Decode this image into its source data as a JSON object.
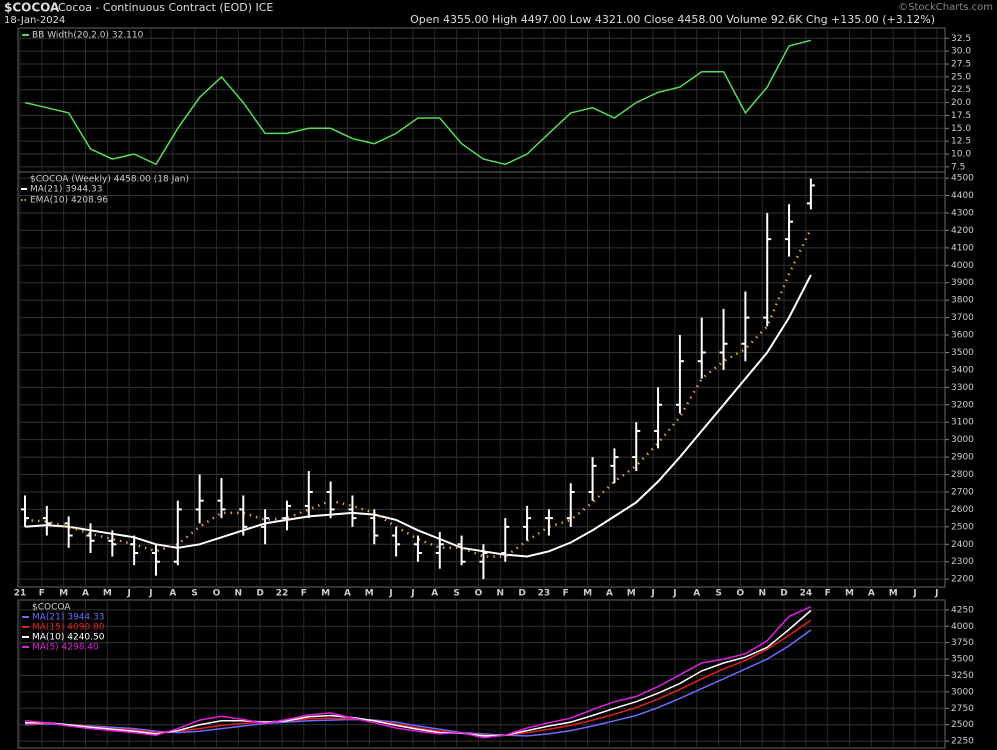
{
  "header": {
    "symbol": "$COCOA",
    "name": "Cocoa - Continuous Contract (EOD) ICE",
    "date": "18-Jan-2024",
    "quote": "Open 4355.00 High 4497.00 Low 4321.00 Close 4458.00 Volume 92.6K Chg +135.00 (+3.12%)",
    "credit": "©StockCharts.com"
  },
  "chart_data": [
    {
      "type": "line",
      "ylim": [
        6.5,
        34.5
      ],
      "yticks": [
        7.5,
        {
          "value": 10,
          "label": "10.0"
        },
        12.5,
        {
          "value": 15,
          "label": "15.0"
        },
        17.5,
        {
          "value": 20,
          "label": "20.0"
        },
        22.5,
        {
          "value": 25,
          "label": "25.0"
        },
        27.5,
        {
          "value": 30,
          "label": "30.0"
        },
        32.5
      ],
      "grid": true,
      "series": [
        {
          "name": "BB Width(20,2.0) 32.110",
          "color": "#55dd55",
          "values": [
            20,
            19,
            18,
            11,
            9,
            10,
            8,
            15,
            21,
            25,
            20,
            14,
            14,
            15,
            15,
            13,
            12,
            14,
            17,
            17,
            12,
            9,
            8,
            10,
            14,
            18,
            19,
            17,
            20,
            22,
            23,
            26,
            26,
            18,
            23,
            31,
            32.11,
            null,
            null,
            null,
            null,
            null,
            null
          ]
        }
      ]
    },
    {
      "type": "ohlc",
      "title": "$COCOA (Weekly) 4458.00 (18 Jan)",
      "ylim": [
        2155,
        4535
      ],
      "yticks": [
        2200,
        2300,
        2400,
        2500,
        2600,
        2700,
        2800,
        2900,
        3000,
        3100,
        3200,
        3300,
        3400,
        3500,
        3600,
        3700,
        3800,
        3900,
        4000,
        4100,
        4200,
        4300,
        4400,
        4500
      ],
      "grid": true,
      "categories": [
        "21",
        "F",
        "M",
        "A",
        "M",
        "J",
        "J",
        "A",
        "S",
        "O",
        "N",
        "D",
        "22",
        "F",
        "M",
        "A",
        "M",
        "J",
        "J",
        "A",
        "S",
        "O",
        "N",
        "D",
        "23",
        "F",
        "M",
        "A",
        "M",
        "J",
        "J",
        "A",
        "S",
        "O",
        "N",
        "D",
        "24",
        "F",
        "M",
        "A",
        "M",
        "J",
        "J"
      ],
      "color": "#ffffff",
      "open": [
        2600,
        2550,
        2520,
        2450,
        2420,
        2400,
        2350,
        2300,
        2600,
        2650,
        2600,
        2500,
        2550,
        2620,
        2700,
        2600,
        2550,
        2450,
        2400,
        2350,
        2400,
        2300,
        2350,
        2500,
        2550,
        2550,
        2700,
        2850,
        2900,
        3050,
        3200,
        3450,
        3500,
        3550,
        3700,
        4150,
        4355,
        null,
        null,
        null,
        null,
        null,
        null
      ],
      "high": [
        2680,
        2620,
        2560,
        2520,
        2480,
        2450,
        2400,
        2650,
        2800,
        2780,
        2680,
        2600,
        2650,
        2820,
        2760,
        2680,
        2600,
        2500,
        2450,
        2470,
        2450,
        2400,
        2550,
        2620,
        2600,
        2750,
        2900,
        2950,
        3100,
        3300,
        3600,
        3700,
        3750,
        3850,
        4300,
        4350,
        4497,
        null,
        null,
        null,
        null,
        null,
        null
      ],
      "low": [
        2500,
        2450,
        2380,
        2350,
        2330,
        2280,
        2220,
        2280,
        2520,
        2550,
        2450,
        2400,
        2480,
        2550,
        2550,
        2500,
        2400,
        2330,
        2300,
        2260,
        2280,
        2200,
        2300,
        2420,
        2450,
        2500,
        2650,
        2750,
        2820,
        2950,
        3150,
        3350,
        3400,
        3450,
        3650,
        4050,
        4321,
        null,
        null,
        null,
        null,
        null,
        null
      ],
      "close": [
        2550,
        2520,
        2450,
        2420,
        2400,
        2350,
        2300,
        2600,
        2650,
        2600,
        2500,
        2550,
        2620,
        2700,
        2600,
        2550,
        2450,
        2400,
        2350,
        2400,
        2300,
        2350,
        2500,
        2550,
        2550,
        2700,
        2850,
        2900,
        3050,
        3200,
        3450,
        3500,
        3550,
        3700,
        4150,
        4250,
        4458,
        null,
        null,
        null,
        null,
        null,
        null
      ],
      "series": [
        {
          "name": "MA(21) 3944.33",
          "color": "#ffffff",
          "style": "solid",
          "values": [
            2500,
            2510,
            2500,
            2480,
            2460,
            2440,
            2400,
            2380,
            2400,
            2440,
            2480,
            2520,
            2540,
            2560,
            2570,
            2580,
            2570,
            2540,
            2480,
            2430,
            2380,
            2360,
            2340,
            2330,
            2360,
            2410,
            2480,
            2560,
            2640,
            2760,
            2900,
            3050,
            3200,
            3350,
            3500,
            3700,
            3944.33,
            null,
            null,
            null,
            null,
            null,
            null
          ]
        },
        {
          "name": "EMA(10) 4208.96",
          "color": "#d9a050",
          "style": "dotted",
          "values": [
            2540,
            2530,
            2500,
            2460,
            2430,
            2400,
            2360,
            2400,
            2500,
            2580,
            2580,
            2540,
            2550,
            2600,
            2650,
            2620,
            2580,
            2500,
            2430,
            2380,
            2380,
            2330,
            2330,
            2420,
            2500,
            2540,
            2640,
            2760,
            2850,
            2980,
            3130,
            3350,
            3450,
            3520,
            3650,
            3950,
            4208.96,
            null,
            null,
            null,
            null,
            null,
            null
          ]
        }
      ]
    },
    {
      "type": "line",
      "title": "$COCOA",
      "ylim": [
        2145,
        4400
      ],
      "yticks": [
        2250,
        2500,
        2750,
        3000,
        3250,
        3500,
        3750,
        4000,
        4250
      ],
      "grid": true,
      "series": [
        {
          "name": "MA(21) 3944.33",
          "color": "#6b6bff",
          "values": [
            2500,
            2510,
            2500,
            2480,
            2460,
            2440,
            2400,
            2380,
            2400,
            2440,
            2480,
            2520,
            2540,
            2560,
            2570,
            2580,
            2570,
            2540,
            2480,
            2430,
            2380,
            2360,
            2340,
            2330,
            2360,
            2410,
            2480,
            2560,
            2640,
            2760,
            2900,
            3050,
            3200,
            3350,
            3500,
            3700,
            3944.33,
            null,
            null,
            null,
            null,
            null,
            null
          ]
        },
        {
          "name": "MA(15) 4090.80",
          "color": "#e02020",
          "values": [
            2510,
            2520,
            2500,
            2470,
            2440,
            2420,
            2380,
            2400,
            2440,
            2490,
            2520,
            2540,
            2560,
            2590,
            2600,
            2590,
            2560,
            2510,
            2450,
            2400,
            2370,
            2340,
            2340,
            2380,
            2430,
            2490,
            2570,
            2660,
            2760,
            2890,
            3040,
            3200,
            3350,
            3480,
            3650,
            3860,
            4090.8,
            null,
            null,
            null,
            null,
            null,
            null
          ]
        },
        {
          "name": "MA(10) 4240.50",
          "color": "#ffffff",
          "values": [
            2530,
            2530,
            2500,
            2460,
            2430,
            2400,
            2360,
            2410,
            2500,
            2560,
            2560,
            2540,
            2560,
            2620,
            2640,
            2610,
            2560,
            2490,
            2430,
            2380,
            2370,
            2330,
            2340,
            2410,
            2480,
            2540,
            2640,
            2750,
            2850,
            2980,
            3130,
            3320,
            3440,
            3530,
            3680,
            3950,
            4240.5,
            null,
            null,
            null,
            null,
            null,
            null
          ]
        },
        {
          "name": "MA(5) 4298.40",
          "color": "#e020e0",
          "values": [
            2560,
            2530,
            2480,
            2440,
            2410,
            2380,
            2340,
            2440,
            2570,
            2630,
            2580,
            2520,
            2580,
            2650,
            2680,
            2600,
            2530,
            2450,
            2400,
            2360,
            2380,
            2300,
            2340,
            2450,
            2530,
            2600,
            2730,
            2850,
            2930,
            3080,
            3260,
            3440,
            3500,
            3580,
            3780,
            4150,
            4298.4,
            null,
            null,
            null,
            null,
            null,
            null
          ]
        }
      ]
    }
  ]
}
